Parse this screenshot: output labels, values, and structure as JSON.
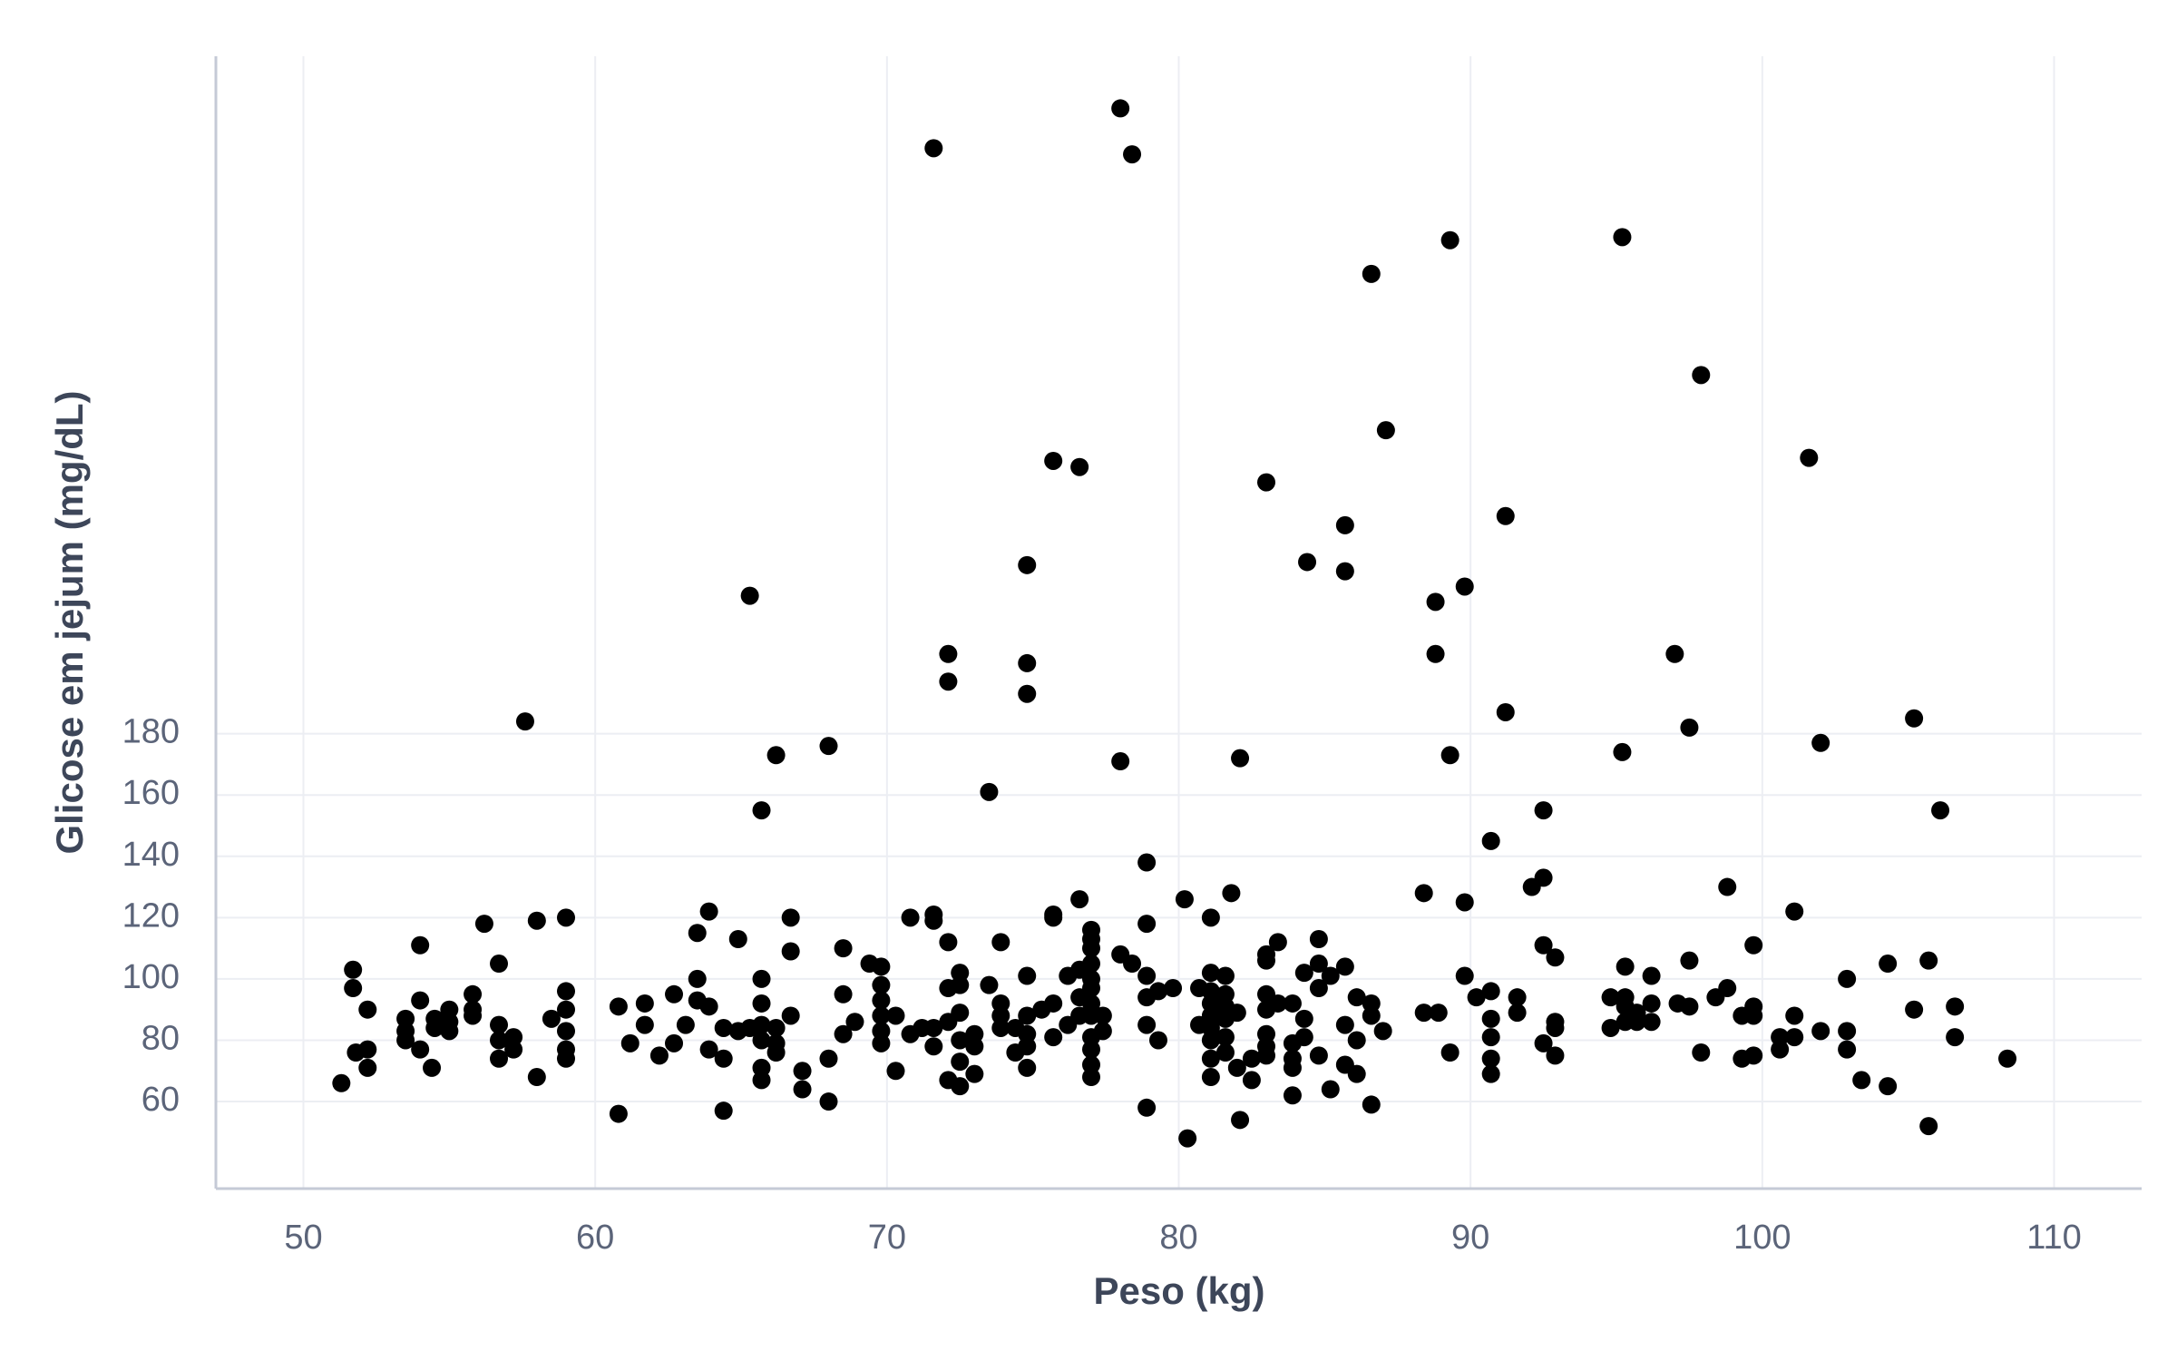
{
  "chart_data": {
    "type": "scatter",
    "x_label": "Peso (kg)",
    "y_label": "Glicose em jejum (mg/dL)",
    "xlim": [
      47,
      113
    ],
    "ylim": [
      31.6,
      401
    ],
    "xticks": [
      50,
      60,
      70,
      80,
      90,
      100,
      110
    ],
    "yticks": [
      60,
      80,
      100,
      120,
      140,
      160,
      180
    ],
    "grid": true,
    "color": "#000000",
    "x": [
      71.6,
      78.0,
      78.4,
      89.3,
      95.2,
      86.6,
      97.9,
      87.1,
      101.6,
      75.7,
      76.6,
      83.0,
      85.7,
      91.2,
      74.8,
      84.4,
      85.7,
      89.8,
      65.3,
      88.8,
      72.1,
      74.8,
      88.8,
      97.0,
      72.1,
      74.8,
      91.2,
      57.6,
      105.2,
      97.5,
      102.0,
      68.0,
      66.2,
      89.3,
      95.2,
      78.0,
      82.1,
      65.7,
      92.5,
      106.1,
      73.5,
      90.7,
      78.9,
      98.8,
      92.1,
      92.5,
      88.4,
      81.8,
      89.8,
      80.2,
      76.6,
      101.1,
      63.9,
      51.3,
      51.7,
      51.7,
      51.8,
      52.2,
      52.2,
      52.2,
      53.5,
      53.5,
      53.5,
      54,
      54,
      54,
      54.4,
      54.5,
      54.5,
      55,
      55,
      55,
      55.8,
      55.8,
      55.8,
      56.2,
      56.7,
      56.7,
      56.7,
      56.7,
      57.2,
      57.2,
      58,
      58,
      58.5,
      59,
      59,
      59,
      59,
      59,
      59,
      60.8,
      60.8,
      61.2,
      61.7,
      61.7,
      62.2,
      62.7,
      62.7,
      63.1,
      63.5,
      63.5,
      63.5,
      63.9,
      63.9,
      64.4,
      64.4,
      64.4,
      64.9,
      64.9,
      65.3,
      65.7,
      65.7,
      65.7,
      65.7,
      65.7,
      65.7,
      66.2,
      66.2,
      66.2,
      66.7,
      66.7,
      66.7,
      67.1,
      67.1,
      68,
      68,
      68.5,
      68.5,
      68.5,
      68.9,
      69.4,
      69.8,
      69.8,
      69.8,
      69.8,
      69.8,
      69.8,
      70.3,
      70.3,
      70.8,
      70.8,
      71.2,
      71.6,
      71.6,
      71.6,
      71.6,
      72.1,
      72.1,
      72.1,
      72.1,
      72.5,
      72.5,
      72.5,
      72.5,
      72.5,
      72.5,
      73,
      73,
      73,
      73.5,
      73.9,
      73.9,
      73.9,
      73.9,
      74.4,
      74.4,
      74.8,
      74.8,
      74.8,
      74.8,
      74.8,
      75.3,
      75.7,
      75.7,
      75.7,
      75.7,
      76.2,
      76.2,
      76.6,
      76.6,
      76.6,
      77,
      77,
      77,
      77,
      77,
      77,
      77,
      77,
      77,
      77,
      77,
      77,
      77.4,
      77.4,
      78,
      78.4,
      78.9,
      78.9,
      78.9,
      78.9,
      78.9,
      79.3,
      79.3,
      79.8,
      80.3,
      80.7,
      80.7,
      81.1,
      81.1,
      81.1,
      81.1,
      81.1,
      81.1,
      81.1,
      81.1,
      81.1,
      81.6,
      81.6,
      81.6,
      81.6,
      81.6,
      81.6,
      82,
      82,
      82.1,
      82.5,
      82.5,
      83,
      83,
      83,
      83,
      83,
      83,
      83,
      83.4,
      83.4,
      83.9,
      83.9,
      83.9,
      83.9,
      83.9,
      84.3,
      84.3,
      84.3,
      84.8,
      84.8,
      84.8,
      84.8,
      85.2,
      85.2,
      85.7,
      85.7,
      85.7,
      86.1,
      86.1,
      86.1,
      86.6,
      86.6,
      86.6,
      87,
      88.4,
      88.9,
      89.3,
      89.8,
      90.2,
      90.7,
      90.7,
      90.7,
      90.7,
      90.7,
      91.6,
      91.6,
      92.5,
      92.5,
      92.9,
      92.9,
      92.9,
      92.9,
      94.8,
      94.8,
      95.3,
      95.3,
      95.3,
      95.3,
      95.7,
      95.7,
      96.2,
      96.2,
      96.2,
      97.1,
      97.5,
      97.5,
      97.9,
      98.4,
      98.8,
      99.3,
      99.3,
      99.7,
      99.7,
      99.7,
      99.7,
      100.6,
      100.6,
      101.1,
      101.1,
      102,
      102.9,
      102.9,
      102.9,
      103.4,
      104.3,
      104.3,
      105.2,
      105.7,
      105.7,
      106.6,
      106.6,
      108.4
    ],
    "y": [
      371,
      384,
      369,
      341,
      342,
      330,
      297,
      279,
      270,
      269,
      267,
      262,
      248,
      251,
      235,
      236,
      233,
      228,
      225,
      223,
      206,
      203,
      206,
      206,
      197,
      193,
      187,
      184,
      185,
      182,
      177,
      176,
      173,
      173,
      174,
      171,
      172,
      155,
      155,
      155,
      161,
      145,
      138,
      130,
      130,
      133,
      128,
      128,
      125,
      126,
      126,
      122,
      122,
      66,
      103,
      97,
      76,
      77,
      71,
      90,
      87,
      83,
      80,
      111,
      93,
      77,
      71,
      87,
      84,
      90,
      86,
      83,
      95,
      90,
      88,
      118,
      105,
      85,
      80,
      74,
      81,
      77,
      119,
      68,
      87,
      120,
      96,
      90,
      83,
      77,
      74,
      91,
      56,
      79,
      92,
      85,
      75,
      95,
      79,
      85,
      115,
      100,
      93,
      91,
      77,
      84,
      74,
      57,
      113,
      83,
      84,
      100,
      92,
      85,
      80,
      71,
      67,
      84,
      79,
      76,
      120,
      109,
      88,
      70,
      64,
      74,
      60,
      110,
      95,
      82,
      86,
      105,
      104,
      98,
      93,
      88,
      83,
      79,
      88,
      70,
      120,
      82,
      84,
      121,
      119,
      84,
      78,
      112,
      97,
      86,
      67,
      102,
      98,
      89,
      80,
      73,
      65,
      82,
      78,
      69,
      98,
      112,
      92,
      88,
      84,
      84,
      76,
      101,
      88,
      82,
      78,
      71,
      90,
      121,
      120,
      92,
      81,
      101,
      85,
      103,
      94,
      88,
      116,
      113,
      110,
      105,
      100,
      97,
      92,
      88,
      81,
      77,
      72,
      68,
      88,
      83,
      108,
      105,
      118,
      101,
      94,
      85,
      58,
      80,
      96,
      97,
      48,
      97,
      85,
      120,
      102,
      96,
      92,
      88,
      84,
      80,
      74,
      68,
      101,
      95,
      91,
      87,
      81,
      76,
      89,
      71,
      54,
      67,
      74,
      108,
      106,
      95,
      90,
      82,
      78,
      75,
      112,
      92,
      92,
      79,
      74,
      71,
      62,
      102,
      87,
      81,
      113,
      105,
      97,
      75,
      101,
      64,
      104,
      85,
      72,
      94,
      80,
      69,
      92,
      88,
      59,
      83,
      89,
      89,
      76,
      101,
      94,
      96,
      87,
      81,
      74,
      69,
      94,
      89,
      111,
      79,
      107,
      86,
      84,
      75,
      94,
      84,
      104,
      94,
      91,
      86,
      89,
      86,
      101,
      92,
      86,
      92,
      106,
      91,
      76,
      94,
      97,
      88,
      74,
      111,
      91,
      88,
      75,
      81,
      77,
      88,
      81,
      83,
      100,
      83,
      77,
      67,
      105,
      65,
      90,
      106,
      52,
      91,
      81,
      74
    ]
  }
}
